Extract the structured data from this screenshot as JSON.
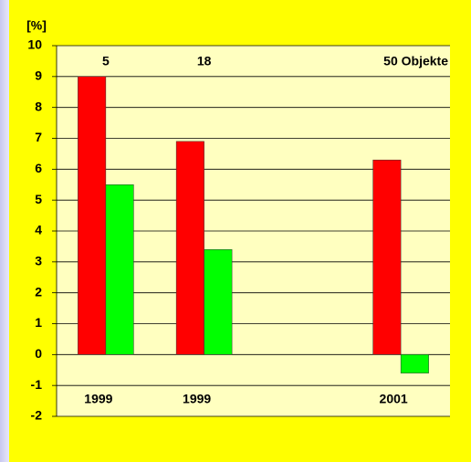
{
  "chart_data": {
    "type": "bar",
    "y_label": "[%]",
    "categories": [
      "1999",
      "1999",
      null,
      "2001"
    ],
    "annotations": [
      "5",
      "18",
      null,
      "50 Objekte"
    ],
    "series": [
      {
        "color": "#ff0000",
        "values": [
          9,
          6.9,
          null,
          6.3
        ]
      },
      {
        "color": "#00ff00",
        "values": [
          5.5,
          3.4,
          null,
          -0.6
        ]
      }
    ],
    "ylim": [
      -2,
      10
    ],
    "yticks": [
      -2,
      -1,
      0,
      1,
      2,
      3,
      4,
      5,
      6,
      7,
      8,
      9,
      10
    ],
    "grid": true
  }
}
